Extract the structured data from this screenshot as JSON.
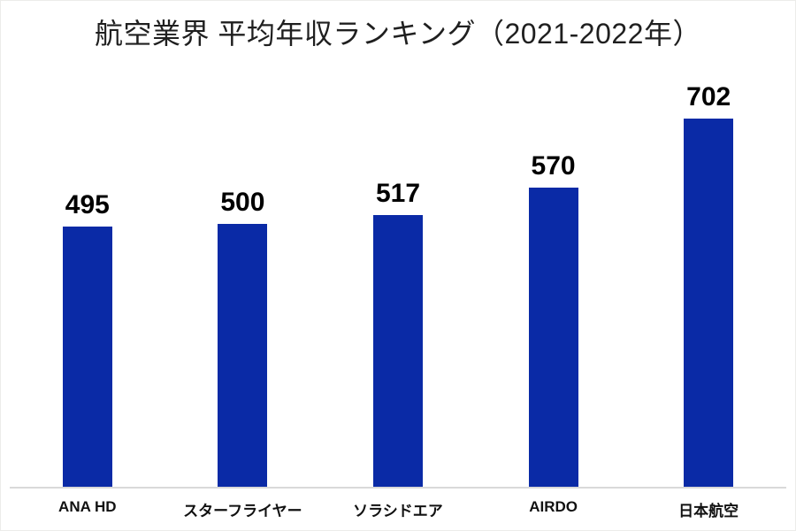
{
  "chart_data": {
    "type": "bar",
    "title": "航空業界 平均年収ランキング（2021-2022年）",
    "categories": [
      "ANA HD",
      "スターフライヤー",
      "ソラシドエア",
      "AIRDO",
      "日本航空"
    ],
    "values": [
      495,
      500,
      517,
      570,
      702
    ],
    "xlabel": "",
    "ylabel": "",
    "ylim": [
      0,
      760
    ],
    "y_axis_visible": false,
    "grid": false,
    "legend": "none",
    "data_labels_visible": true,
    "colors": {
      "bar": "#0A2AA6",
      "value_label": "#000000",
      "category_label": "#111111",
      "title": "#1f1f1f",
      "axis_line": "#d9d9d9",
      "background": "#ffffff"
    }
  }
}
